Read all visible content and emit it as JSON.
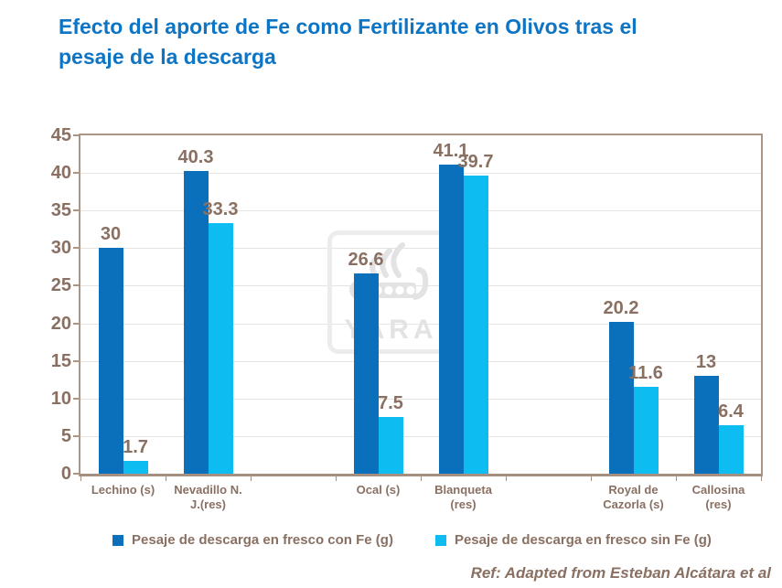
{
  "title": {
    "text": "Efecto del aporte de Fe como Fertilizante en Olivos tras el pesaje de la descarga",
    "color": "#0e74c4"
  },
  "watermark": {
    "label": "YARA"
  },
  "footer": {
    "text": "Ref: Adapted from Esteban Alcátara et al"
  },
  "colors": {
    "axis_text": "#8a7062",
    "grid": "#e9e3df",
    "plot_border": "#ab9686",
    "series_dark_blue": "#0b70bb",
    "series_light_blue": "#0dbdf1"
  },
  "chart_data": {
    "type": "bar",
    "title": "Efecto del aporte de Fe como Fertilizante en Olivos tras el pesaje de la descarga",
    "categories": [
      "Lechino (s)",
      "Nevadillo N. J.(res)",
      "Ocal (s)",
      "Blanqueta (res)",
      "Royal de Cazorla (s)",
      "Callosina (res)"
    ],
    "category_lines": [
      [
        "Lechino (s)"
      ],
      [
        "Nevadillo N.",
        "J.(res)"
      ],
      [
        "Ocal (s)"
      ],
      [
        "Blanqueta",
        "(res)"
      ],
      [
        "Royal de",
        "Cazorla (s)"
      ],
      [
        "Callosina",
        "(res)"
      ]
    ],
    "series": [
      {
        "name": "Pesaje de descarga en fresco con Fe (g)",
        "color": "#0b70bb",
        "values": [
          30,
          40.3,
          26.6,
          41.1,
          20.2,
          13
        ]
      },
      {
        "name": "Pesaje de descarga en fresco sin Fe (g)",
        "color": "#0dbdf1",
        "values": [
          1.7,
          33.3,
          7.5,
          39.7,
          11.6,
          6.4
        ]
      }
    ],
    "data_labels": [
      [
        "30",
        "1.7"
      ],
      [
        "40.3",
        "33.3"
      ],
      [
        "26.6",
        "7.5"
      ],
      [
        "41.1",
        "39.7"
      ],
      [
        "20.2",
        "11.6"
      ],
      [
        "13",
        "6.4"
      ]
    ],
    "xlabel": "",
    "ylabel": "",
    "ylim": [
      0,
      45
    ],
    "ytick_step": 5,
    "grid": true,
    "legend_position": "bottom",
    "layout": {
      "n_slots": 8,
      "slot_of_category": [
        0,
        1,
        3,
        4,
        6,
        7
      ]
    }
  }
}
